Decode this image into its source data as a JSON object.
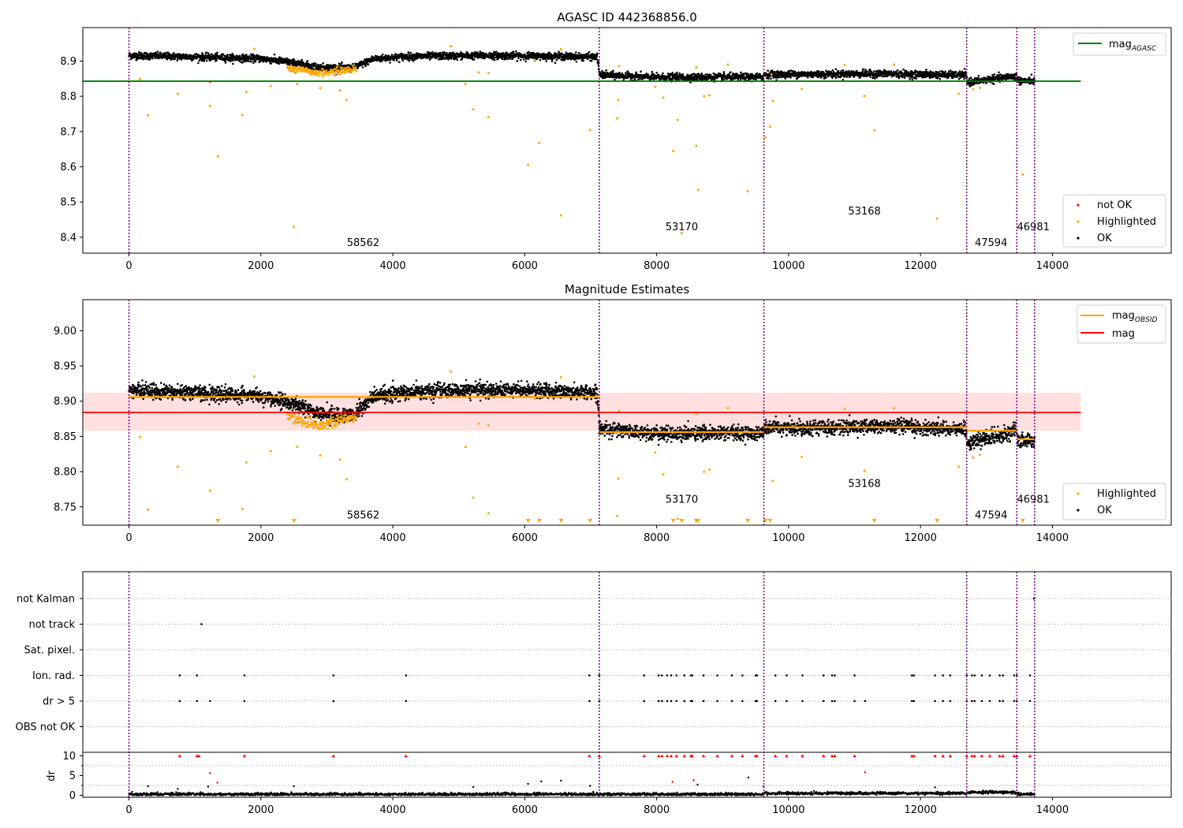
{
  "figure": {
    "obs_boundaries": [
      0,
      7130,
      9625,
      12700,
      13460,
      13730
    ],
    "obs_labels": [
      {
        "text": "58562",
        "x": 3550,
        "panel1_y": 8.375,
        "panel2_y": 8.7335
      },
      {
        "text": "53170",
        "x": 8380,
        "panel1_y": 8.42,
        "panel2_y": 8.756
      },
      {
        "text": "53168",
        "x": 11150,
        "panel1_y": 8.465,
        "panel2_y": 8.7785
      },
      {
        "text": "47594",
        "x": 13070,
        "panel1_y": 8.375,
        "panel2_y": 8.7335
      },
      {
        "text": "46981",
        "x": 13710,
        "panel1_y": 8.42,
        "panel2_y": 8.756
      }
    ],
    "colors": {
      "ok": "#000000",
      "highlighted": "#ffa500",
      "not_ok": "#ff0000",
      "agasc": "#008000",
      "mag": "#ff0000",
      "mag_obsid": "#ffa500",
      "boundary": "#800080",
      "band": "#ffdddd"
    }
  },
  "chart_data": [
    {
      "type": "scatter",
      "title": "AGASC ID 442368856.0",
      "xlim": [
        -700,
        15800
      ],
      "ylim": [
        8.355,
        8.995
      ],
      "xticks": [
        0,
        2000,
        4000,
        6000,
        8000,
        10000,
        12000,
        14000
      ],
      "yticks": [
        8.4,
        8.5,
        8.6,
        8.7,
        8.8,
        8.9
      ],
      "ytick_labels": [
        "8.4",
        "8.5",
        "8.6",
        "8.7",
        "8.8",
        "8.9"
      ],
      "mag_agasc": 8.843,
      "mag_agasc_xrange": [
        -700,
        14430
      ],
      "legend_lines": [
        {
          "label": "mag",
          "sub": "AGASC",
          "color": "#008000"
        }
      ],
      "legend_points": [
        {
          "label": "not OK",
          "color": "#ff0000"
        },
        {
          "label": "Highlighted",
          "color": "#ffa500"
        },
        {
          "label": "OK",
          "color": "#000000"
        }
      ],
      "ok_trend": [
        [
          0,
          8.916
        ],
        [
          1000,
          8.912
        ],
        [
          2000,
          8.907
        ],
        [
          2400,
          8.898
        ],
        [
          2900,
          8.882
        ],
        [
          3400,
          8.88
        ],
        [
          3700,
          8.906
        ],
        [
          4200,
          8.913
        ],
        [
          5500,
          8.916
        ],
        [
          7100,
          8.912
        ],
        [
          7135,
          8.861
        ],
        [
          8000,
          8.854
        ],
        [
          9620,
          8.855
        ],
        [
          9630,
          8.862
        ],
        [
          11500,
          8.864
        ],
        [
          12690,
          8.86
        ],
        [
          12710,
          8.84
        ],
        [
          13450,
          8.858
        ],
        [
          13470,
          8.844
        ],
        [
          13730,
          8.844
        ]
      ],
      "ok_spread": 0.009,
      "highlighted_dip": {
        "x_range": [
          2400,
          3450
        ],
        "y_center": 8.866,
        "spread": 0.011
      },
      "highlighted_outliers": [
        [
          170,
          8.849
        ],
        [
          290,
          8.746
        ],
        [
          740,
          8.807
        ],
        [
          1230,
          8.773
        ],
        [
          1350,
          8.63
        ],
        [
          1720,
          8.747
        ],
        [
          1780,
          8.813
        ],
        [
          2150,
          8.829
        ],
        [
          2500,
          8.43
        ],
        [
          2550,
          8.835
        ],
        [
          2900,
          8.823
        ],
        [
          3200,
          8.817
        ],
        [
          3300,
          8.789
        ],
        [
          5100,
          8.835
        ],
        [
          5220,
          8.763
        ],
        [
          5450,
          8.741
        ],
        [
          6050,
          8.606
        ],
        [
          6220,
          8.668
        ],
        [
          6550,
          8.462
        ],
        [
          6990,
          8.704
        ],
        [
          7420,
          8.79
        ],
        [
          7400,
          8.737
        ],
        [
          7980,
          8.827
        ],
        [
          8100,
          8.796
        ],
        [
          8250,
          8.645
        ],
        [
          8320,
          8.733
        ],
        [
          8380,
          8.412
        ],
        [
          8600,
          8.66
        ],
        [
          8630,
          8.534
        ],
        [
          8720,
          8.8
        ],
        [
          8800,
          8.803
        ],
        [
          9380,
          8.531
        ],
        [
          9650,
          8.683
        ],
        [
          9720,
          8.714
        ],
        [
          9760,
          8.787
        ],
        [
          10200,
          8.821
        ],
        [
          11300,
          8.703
        ],
        [
          11150,
          8.801
        ],
        [
          12250,
          8.453
        ],
        [
          12580,
          8.807
        ],
        [
          12800,
          8.82
        ],
        [
          13550,
          8.578
        ],
        [
          4880,
          8.942
        ],
        [
          1900,
          8.935
        ],
        [
          5300,
          8.868
        ],
        [
          5450,
          8.866
        ],
        [
          6150,
          8.903
        ],
        [
          6550,
          8.934
        ],
        [
          7430,
          8.886
        ],
        [
          8600,
          8.882
        ],
        [
          9080,
          8.89
        ],
        [
          9740,
          8.862
        ],
        [
          10850,
          8.889
        ],
        [
          11600,
          8.89
        ],
        [
          12900,
          8.824
        ]
      ],
      "not_ok_points": [
        [
          1230,
          8.84
        ]
      ]
    },
    {
      "type": "scatter",
      "title": "Magnitude Estimates",
      "xlim": [
        -700,
        15800
      ],
      "ylim": [
        8.724,
        9.044
      ],
      "xticks": [
        0,
        2000,
        4000,
        6000,
        8000,
        10000,
        12000,
        14000
      ],
      "yticks": [
        8.75,
        8.8,
        8.85,
        8.9,
        8.95,
        9.0
      ],
      "ytick_labels": [
        "8.75",
        "8.80",
        "8.85",
        "8.90",
        "8.95",
        "9.00"
      ],
      "mag": 8.884,
      "mag_band": [
        8.858,
        8.912
      ],
      "mag_xrange": [
        -700,
        14430
      ],
      "mag_obsid_segments": [
        [
          0,
          7130,
          8.906
        ],
        [
          7130,
          9625,
          8.856
        ],
        [
          9625,
          12700,
          8.863
        ],
        [
          12700,
          13460,
          8.858
        ],
        [
          13460,
          13730,
          8.846
        ]
      ],
      "legend_lines": [
        {
          "label": "mag",
          "sub": "OBSID",
          "color": "#ffa500"
        },
        {
          "label": "mag",
          "sub": "",
          "color": "#ff0000"
        }
      ],
      "legend_points": [
        {
          "label": "Highlighted",
          "color": "#ffa500"
        },
        {
          "label": "OK",
          "color": "#000000"
        }
      ],
      "offscale_markers_x": [
        1350,
        2500,
        6050,
        6220,
        6550,
        6990,
        8250,
        8380,
        8600,
        8630,
        9380,
        9650,
        9720,
        11300,
        12250,
        13550
      ]
    },
    {
      "type": "scatter",
      "title": "",
      "xlim": [
        -700,
        15800
      ],
      "xticks": [
        0,
        2000,
        4000,
        6000,
        8000,
        10000,
        12000,
        14000
      ],
      "flag_categories": [
        "not Kalman",
        "not track",
        "Sat. pixel.",
        "Ion. rad.",
        "dr > 5",
        "OBS not OK"
      ],
      "flag_points": {
        "not Kalman": [
          13720
        ],
        "not track": [
          1100
        ],
        "Sat. pixel.": [],
        "Ion. rad.": [
          770,
          1030,
          1750,
          3100,
          4200,
          6980,
          7130,
          7810,
          8030,
          8080,
          8160,
          8220,
          8300,
          8420,
          8520,
          8540,
          8710,
          8920,
          9140,
          9300,
          9500,
          9520,
          9800,
          9970,
          10210,
          10530,
          10660,
          10700,
          11000,
          11870,
          11900,
          12220,
          12340,
          12450,
          12700,
          12780,
          12820,
          12930,
          13050,
          13200,
          13250,
          13420,
          13460,
          13660
        ],
        "dr > 5": [
          770,
          1030,
          1230,
          1750,
          3100,
          4200,
          6980,
          7130,
          7810,
          8030,
          8080,
          8160,
          8220,
          8300,
          8420,
          8520,
          8540,
          8710,
          8920,
          9140,
          9300,
          9500,
          9520,
          9800,
          9970,
          10210,
          10530,
          10660,
          10700,
          11000,
          11160,
          11870,
          11900,
          12220,
          12340,
          12450,
          12700,
          12780,
          12820,
          12930,
          13050,
          13200,
          13250,
          13420,
          13460,
          13660
        ],
        "OBS not OK": []
      },
      "dr_ylabel": "dr",
      "dr_ylim": [
        -0.5,
        10.5
      ],
      "dr_yticks": [
        0,
        5,
        10
      ],
      "dr_not_ok": [
        [
          770,
          10
        ],
        [
          1030,
          10
        ],
        [
          1060,
          10
        ],
        [
          1230,
          5.6
        ],
        [
          1340,
          3.2
        ],
        [
          1750,
          10
        ],
        [
          3100,
          10
        ],
        [
          4200,
          10
        ],
        [
          6980,
          10
        ],
        [
          7130,
          10
        ],
        [
          7810,
          10
        ],
        [
          8030,
          10
        ],
        [
          8080,
          10
        ],
        [
          8160,
          10
        ],
        [
          8220,
          10
        ],
        [
          8240,
          3.4
        ],
        [
          8300,
          10
        ],
        [
          8420,
          10
        ],
        [
          8520,
          10
        ],
        [
          8540,
          10
        ],
        [
          8560,
          3.8
        ],
        [
          8710,
          10
        ],
        [
          8920,
          10
        ],
        [
          9140,
          10
        ],
        [
          9300,
          10
        ],
        [
          9500,
          10
        ],
        [
          9520,
          10
        ],
        [
          9800,
          10
        ],
        [
          9970,
          10
        ],
        [
          10210,
          10
        ],
        [
          10530,
          10
        ],
        [
          10660,
          10
        ],
        [
          10700,
          10
        ],
        [
          11000,
          10
        ],
        [
          11160,
          5.8
        ],
        [
          11870,
          10
        ],
        [
          11900,
          10
        ],
        [
          12220,
          10
        ],
        [
          12340,
          10
        ],
        [
          12450,
          10
        ],
        [
          12700,
          10
        ],
        [
          12780,
          10
        ],
        [
          12820,
          10
        ],
        [
          12930,
          10
        ],
        [
          13050,
          10
        ],
        [
          13200,
          10
        ],
        [
          13250,
          10
        ],
        [
          13420,
          10
        ],
        [
          13460,
          10
        ],
        [
          13660,
          10
        ]
      ],
      "dr_outliers_ok": [
        [
          290,
          2.3
        ],
        [
          740,
          1.6
        ],
        [
          1200,
          2.2
        ],
        [
          2500,
          2.3
        ],
        [
          5220,
          2.1
        ],
        [
          6050,
          2.9
        ],
        [
          6250,
          3.5
        ],
        [
          6550,
          3.7
        ],
        [
          6990,
          2.4
        ],
        [
          8620,
          2.7
        ],
        [
          9390,
          4.5
        ],
        [
          9620,
          2.2
        ],
        [
          12220,
          2.0
        ]
      ]
    }
  ]
}
